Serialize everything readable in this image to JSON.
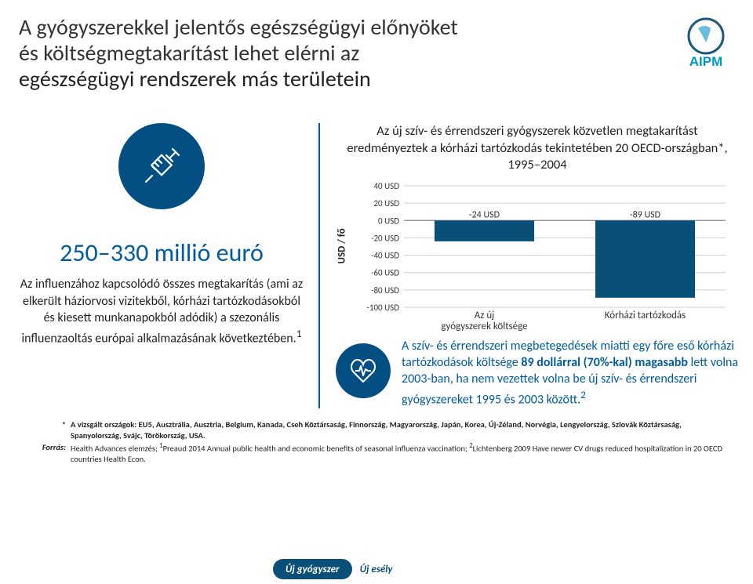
{
  "header": {
    "title_line1_part1": "A gyógyszerekkel ",
    "title_line1_part2": "jelentős egészségügyi előnyöket",
    "title_line2_part1": "és költségmegtakarítást ",
    "title_line2_part2": "lehet elérni az",
    "title_line3": "egészségügyi rendszerek más területein",
    "logo_text": "AIPM",
    "logo_color": "#0098c3",
    "logo_ring": "#1b5a7a"
  },
  "left": {
    "big_stat": "250–330 millió euró",
    "paragraph": "Az influenzához kapcsolódó összes megtakarítás (ami az elkerült háziorvosi vizitekből, kórházi tartózkodásokból és kiesett munkanapokból adódik) a szezonális influenzaoltás európai alkalmazásának következtében.",
    "sup": "1"
  },
  "chart": {
    "type": "bar",
    "title": "Az új szív- és érrendszeri gyógyszerek közvetlen megtakarítást eredményeztek a kórházi tartózkodás tekintetében 20 OECD-országban*, 1995–2004",
    "ylabel": "USD / fő",
    "ylim": [
      -100,
      40
    ],
    "ytick_step": 20,
    "categories": [
      "Az új gyógyszerek költsége",
      "Kórházi tartózkodás"
    ],
    "values": [
      -24,
      -89
    ],
    "value_labels": [
      "-24 USD",
      "-89 USD"
    ],
    "bar_color": "#0a4f78",
    "background_color": "#ffffff",
    "grid_color": "#cfcfcf",
    "axis_color": "#888888",
    "tick_labels": [
      "40 USD",
      "20 USD",
      "0 USD",
      "-20 USD",
      "-40 USD",
      "-60 USD",
      "-80 USD",
      "-100 USD"
    ]
  },
  "right_bottom": {
    "text_pre": "A szív- és érrendszeri megbetegedések miatti egy főre eső kórházi tartózkodások költsége ",
    "text_bold": "89 dollárral (70%-kal) magasabb",
    "text_post": " lett volna 2003-ban, ha nem vezettek volna be új szív- és érrendszeri gyógyszereket 1995 és 2003 között.",
    "sup": "2"
  },
  "footnotes": {
    "star_label": "*",
    "star_text": "A vizsgált országok: EU5, Ausztrália, Ausztria, Belgium, Kanada, Cseh Köztársaság, Finnország, Magyarország, Japán, Korea, Új-Zéland, Norvégia, Lengyelország, Szlovák Köztársaság, Spanyolország, Svájc, Törökország, USA.",
    "source_label": "Forrás:",
    "source_text_pre": "Health Advances elemzés; ",
    "source_text_sup1": "1",
    "source_text_mid1": "Preaud 2014 Annual public health and economic benefits of seasonal influenza vaccination; ",
    "source_text_sup2": "2",
    "source_text_mid2": "Lichtenberg 2009 Have newer CV drugs reduced hospitalization in 20 OECD countries Health Econ."
  },
  "pill": {
    "left": "Új gyógyszer",
    "right": "Új esély"
  },
  "colors": {
    "accent": "#005c9e",
    "dark_circle": "#034f84"
  }
}
